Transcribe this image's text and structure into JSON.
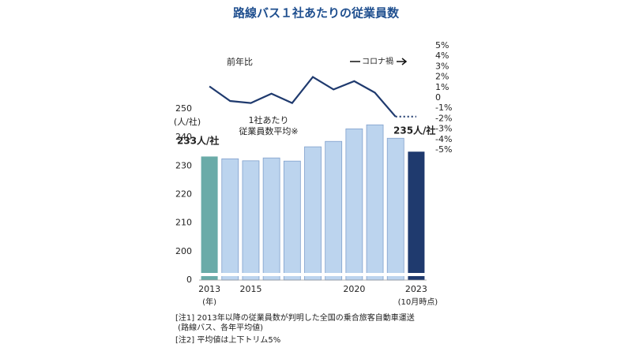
{
  "chart_data": {
    "type": "bar",
    "title": "路線バス１社あたりの従業員数",
    "y_label": "(人/社)",
    "bar_label": "1社あたり\n従業員数平均※",
    "categories": [
      "2013",
      null,
      "2015",
      null,
      null,
      null,
      null,
      "2020",
      null,
      null,
      "2023"
    ],
    "x_sublabels": [
      "(年)",
      null,
      null,
      null,
      null,
      null,
      null,
      null,
      null,
      null,
      "(10月時点)"
    ],
    "values": [
      233.3,
      232.5,
      231.8,
      232.8,
      231.7,
      236.7,
      238.6,
      243,
      244.4,
      239.7,
      235
    ],
    "value_labels": [
      "233人/社",
      null,
      null,
      null,
      null,
      null,
      null,
      null,
      null,
      null,
      "235人/社"
    ],
    "colors": [
      "#6aaba8",
      "#bcd4ee",
      "#bcd4ee",
      "#bcd4ee",
      "#bcd4ee",
      "#bcd4ee",
      "#bcd4ee",
      "#bcd4ee",
      "#bcd4ee",
      "#bcd4ee",
      "#1f3a6e"
    ],
    "ylim": [
      0,
      250
    ],
    "yticks": [
      0,
      200,
      210,
      220,
      230,
      240,
      250
    ],
    "axis_break": true,
    "line": {
      "name": "前年比",
      "color": "#1f3a6e",
      "axis": "y2",
      "values": [
        1.1,
        -0.3,
        -0.5,
        0.4,
        -0.5,
        2.0,
        0.8,
        1.6,
        0.5,
        -1.8,
        -1.8
      ],
      "dotted_from": 9
    },
    "y2lim": [
      -5,
      5
    ],
    "y2ticks": [
      {
        "value": 5,
        "label": "5%"
      },
      {
        "value": 4,
        "label": "4%"
      },
      {
        "value": 3,
        "label": "3%"
      },
      {
        "value": 2,
        "label": "2%"
      },
      {
        "value": 1,
        "label": "1%"
      },
      0,
      {
        "value": -1,
        "label": "-1%"
      },
      {
        "value": -2,
        "label": "-2%"
      },
      {
        "value": -3,
        "label": "-3%"
      },
      {
        "value": -4,
        "label": "-4%"
      },
      {
        "value": -5,
        "label": "-5%"
      }
    ],
    "annotation": "コロナ禍",
    "notes": [
      "[注1]  2013年以降の従業員数が判明した全国の乗合旅客自動車運送\n          (路線バス、各年平均値)",
      "[注2]  平均値は上下トリム5%"
    ]
  }
}
